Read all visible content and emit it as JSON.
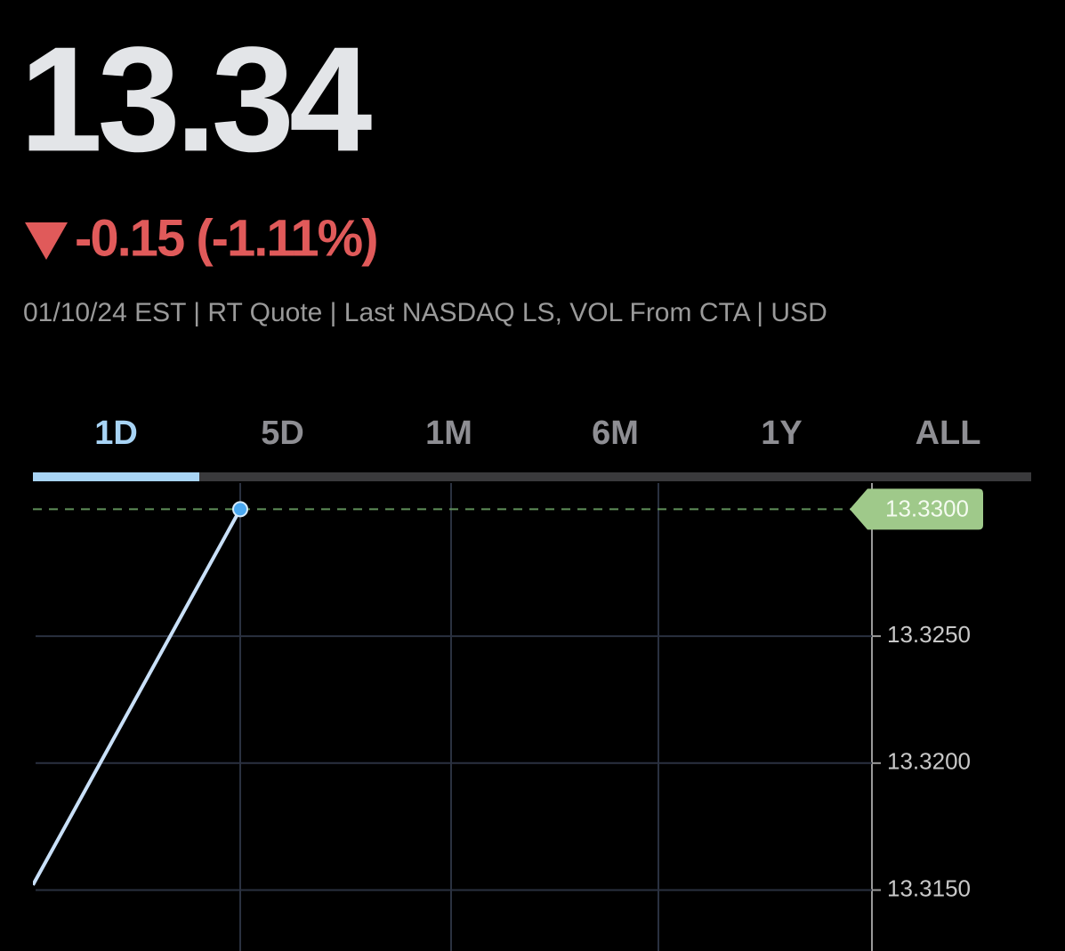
{
  "quote": {
    "price": "13.34",
    "change": "-0.15 (-1.11%)",
    "info": "01/10/24 EST | RT Quote | Last NASDAQ LS, VOL From CTA | USD"
  },
  "tabs": {
    "items": [
      "1D",
      "5D",
      "1M",
      "6M",
      "1Y",
      "ALL"
    ],
    "active": 0
  },
  "chart_data": {
    "type": "line",
    "categories": [
      null,
      null
    ],
    "values": [
      13.3152,
      13.33
    ],
    "color": "#c9e0f8",
    "ylim": [
      13.3126,
      13.3311
    ],
    "yticks": [
      {
        "value": 13.325,
        "label": "13.3250"
      },
      {
        "value": 13.32,
        "label": "13.3200"
      },
      {
        "value": 13.315,
        "label": "13.3150"
      }
    ],
    "last_value": {
      "value": 13.33,
      "label": "13.3300"
    },
    "grid": true
  }
}
